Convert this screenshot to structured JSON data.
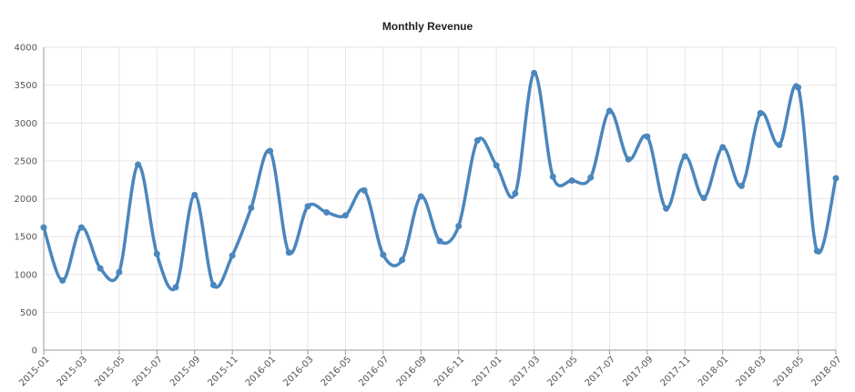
{
  "chart_data": {
    "type": "line",
    "title": "Monthly Revenue",
    "xlabel": "",
    "ylabel": "",
    "ylim": [
      0,
      4000
    ],
    "y_ticks": [
      0,
      500,
      1000,
      1500,
      2000,
      2500,
      3000,
      3500,
      4000
    ],
    "x_tick_labels": [
      "2015-01",
      "2015-03",
      "2015-05",
      "2015-07",
      "2015-09",
      "2015-11",
      "2016-01",
      "2016-03",
      "2016-05",
      "2016-07",
      "2016-09",
      "2016-11",
      "2017-01",
      "2017-03",
      "2017-05",
      "2017-07",
      "2017-09",
      "2017-11",
      "2018-01",
      "2018-03",
      "2018-05",
      "2018-07"
    ],
    "x": [
      "2015-01",
      "2015-02",
      "2015-03",
      "2015-04",
      "2015-05",
      "2015-06",
      "2015-07",
      "2015-08",
      "2015-09",
      "2015-10",
      "2015-11",
      "2015-12",
      "2016-01",
      "2016-02",
      "2016-03",
      "2016-04",
      "2016-05",
      "2016-06",
      "2016-07",
      "2016-08",
      "2016-09",
      "2016-10",
      "2016-11",
      "2016-12",
      "2017-01",
      "2017-02",
      "2017-03",
      "2017-04",
      "2017-05",
      "2017-06",
      "2017-07",
      "2017-08",
      "2017-09",
      "2017-10",
      "2017-11",
      "2017-12",
      "2018-01",
      "2018-02",
      "2018-03",
      "2018-04",
      "2018-05",
      "2018-06",
      "2018-07"
    ],
    "series": [
      {
        "color": "#4b86bd",
        "values": [
          1620,
          920,
          1620,
          1080,
          1030,
          2450,
          1270,
          830,
          2050,
          860,
          1250,
          1880,
          2630,
          1290,
          1900,
          1820,
          1780,
          2110,
          1260,
          1190,
          2030,
          1440,
          1640,
          2770,
          2440,
          2070,
          3660,
          2290,
          2240,
          2280,
          3160,
          2520,
          2820,
          1870,
          2560,
          2010,
          2680,
          2170,
          3130,
          2710,
          3470,
          1310,
          2270
        ]
      }
    ],
    "grid": true,
    "legend": "none"
  }
}
